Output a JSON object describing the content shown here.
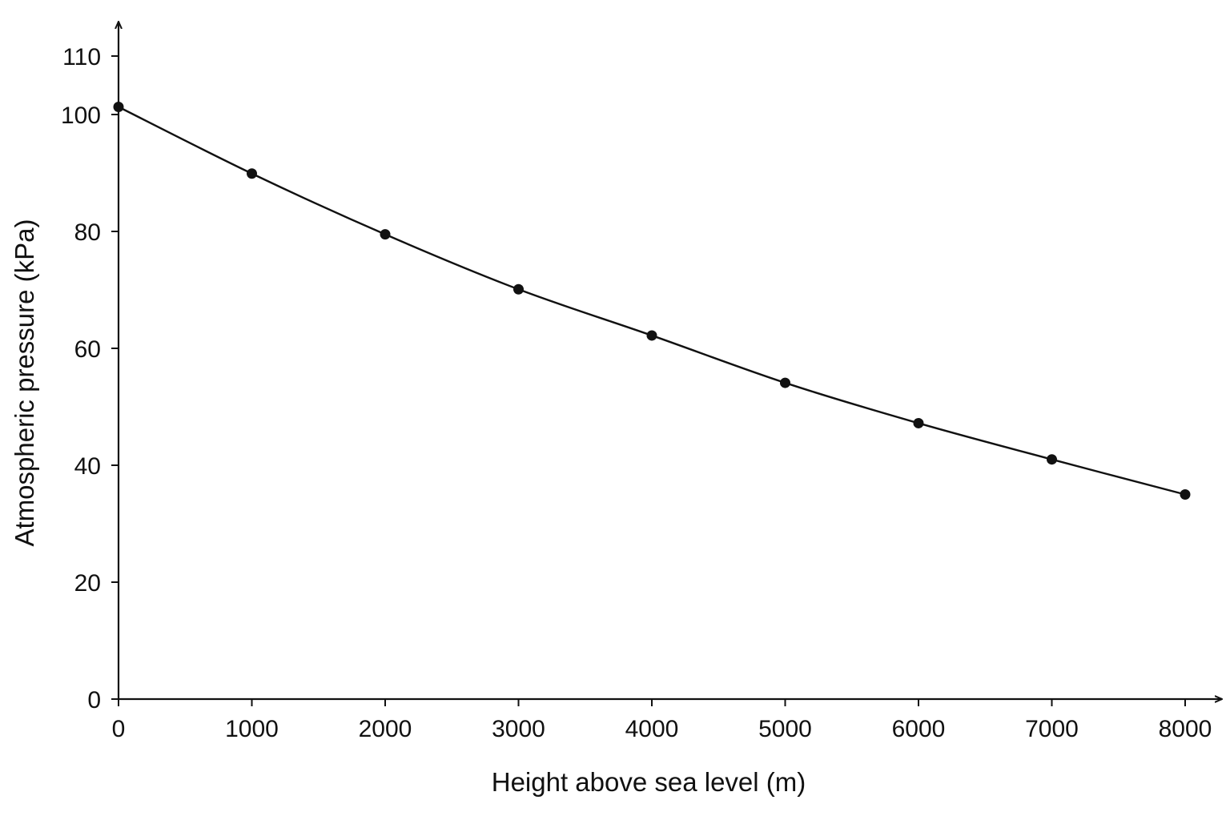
{
  "chart_data": {
    "type": "line",
    "title": "",
    "xlabel": "Height above sea level (m)",
    "ylabel": "Atmospheric pressure (kPa)",
    "xlim": [
      0,
      8000
    ],
    "ylim": [
      0,
      110
    ],
    "x_ticks": [
      0,
      1000,
      2000,
      3000,
      4000,
      5000,
      6000,
      7000,
      8000
    ],
    "y_ticks": [
      0,
      20,
      40,
      60,
      80,
      100,
      110
    ],
    "grid": false,
    "legend": "none",
    "markers": true,
    "line_color": "#111111",
    "series": [
      {
        "x": [
          0,
          1000,
          2000,
          3000,
          4000,
          5000,
          6000,
          7000,
          8000
        ],
        "y": [
          101.3,
          89.9,
          79.5,
          70.1,
          62.2,
          54.1,
          47.2,
          41.0,
          35.0
        ]
      }
    ]
  }
}
